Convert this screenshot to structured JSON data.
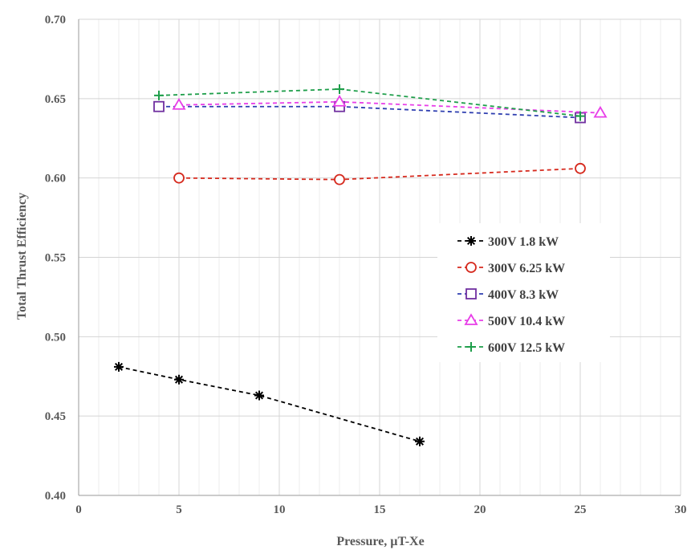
{
  "chart_data": {
    "type": "scatter",
    "title": "",
    "xlabel": "Pressure, µT-Xe",
    "ylabel": "Total Thrust Efficiency",
    "xlim": [
      0,
      30
    ],
    "ylim": [
      0.4,
      0.7
    ],
    "x_major_ticks": [
      0,
      5,
      10,
      15,
      20,
      25,
      30
    ],
    "y_major_ticks": [
      0.4,
      0.45,
      0.5,
      0.55,
      0.6,
      0.65,
      0.7
    ],
    "x_tick_labels": [
      "0",
      "5",
      "10",
      "15",
      "20",
      "25",
      "30"
    ],
    "y_tick_labels": [
      "0.40",
      "0.45",
      "0.50",
      "0.55",
      "0.60",
      "0.65",
      "0.70"
    ],
    "x_minor_step": 1,
    "grid": "x minor and major vertical gridlines, horizontal gridlines at major y ticks",
    "legend_position": "center-right",
    "line_style": "dashed",
    "series": [
      {
        "name": "300V 1.8 kW",
        "color": "#000000",
        "marker": "asterisk",
        "x": [
          2,
          5,
          9,
          17
        ],
        "y": [
          0.481,
          0.473,
          0.463,
          0.434
        ]
      },
      {
        "name": "300V 6.25 kW",
        "color": "#d62a1e",
        "marker": "circle",
        "x": [
          5,
          13,
          25
        ],
        "y": [
          0.6,
          0.599,
          0.606
        ]
      },
      {
        "name": "400V 8.3 kW",
        "color": "#2f3fb0",
        "marker": "square",
        "marker_color": "#7030a0",
        "x": [
          4,
          13,
          25
        ],
        "y": [
          0.645,
          0.645,
          0.638
        ]
      },
      {
        "name": "500V 10.4 kW",
        "color": "#e83ee8",
        "marker": "triangle",
        "x": [
          5,
          13,
          26
        ],
        "y": [
          0.646,
          0.648,
          0.641
        ]
      },
      {
        "name": "600V 12.5 kW",
        "color": "#1e9e4a",
        "marker": "plus",
        "x": [
          4,
          13,
          25
        ],
        "y": [
          0.652,
          0.656,
          0.639
        ]
      }
    ]
  }
}
